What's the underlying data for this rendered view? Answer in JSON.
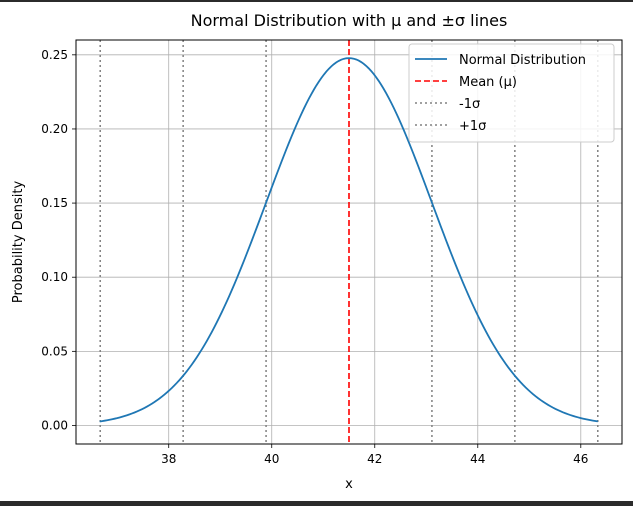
{
  "chart_data": {
    "type": "line",
    "title": "Normal Distribution with μ and ±σ lines",
    "xlabel": "x",
    "ylabel": "Probability Density",
    "xlim": [
      36.2,
      46.8
    ],
    "ylim": [
      -0.0125,
      0.26
    ],
    "xticks": [
      38,
      40,
      42,
      44,
      46
    ],
    "xtick_labels": [
      "38",
      "40",
      "42",
      "44",
      "46"
    ],
    "yticks": [
      0.0,
      0.05,
      0.1,
      0.15,
      0.2,
      0.25
    ],
    "ytick_labels": [
      "0.00",
      "0.05",
      "0.10",
      "0.15",
      "0.20",
      "0.25"
    ],
    "grid": true,
    "legend_position": "top-right",
    "mean": 41.5,
    "sigma": 1.61,
    "x_start": 36.66,
    "x_end": 46.33,
    "series": [
      {
        "name": "Normal Distribution",
        "kind": "curve",
        "color": "#1f77b4",
        "style": "solid"
      },
      {
        "name": "Mean (μ)",
        "kind": "vline",
        "x": [
          41.5
        ],
        "color": "#ff0000",
        "style": "dashed"
      },
      {
        "name": "-1σ",
        "kind": "vline",
        "x": [
          39.89,
          38.28,
          36.67
        ],
        "color": "#808080",
        "style": "dotted"
      },
      {
        "name": "+1σ",
        "kind": "vline",
        "x": [
          43.11,
          44.72,
          46.33
        ],
        "color": "#808080",
        "style": "dotted"
      }
    ]
  }
}
